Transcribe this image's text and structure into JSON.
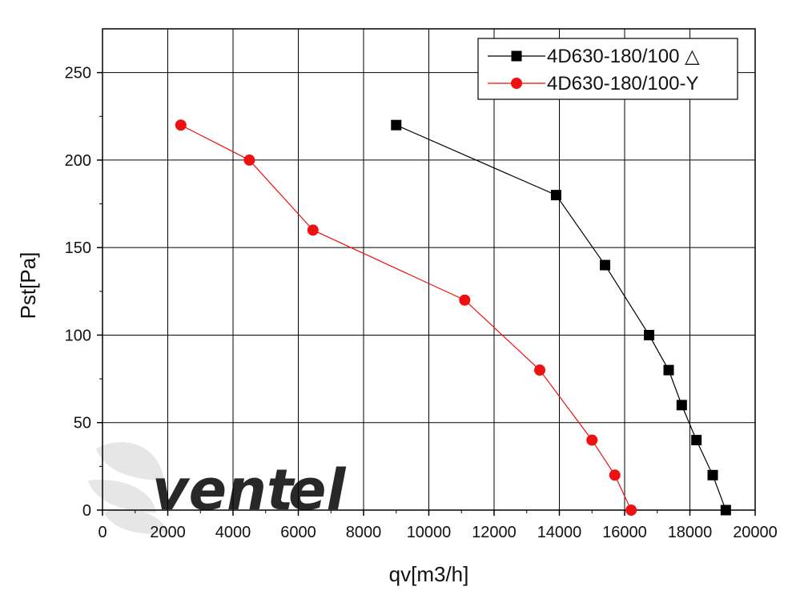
{
  "chart_data": {
    "type": "line",
    "xlabel": "qv[m3/h]",
    "ylabel": "Pst[Pa]",
    "xlim": [
      0,
      20000
    ],
    "ylim": [
      0,
      275
    ],
    "x_ticks": [
      0,
      2000,
      4000,
      6000,
      8000,
      10000,
      12000,
      14000,
      16000,
      18000,
      20000
    ],
    "y_ticks": [
      0,
      50,
      100,
      150,
      200,
      250
    ],
    "grid": true,
    "legend_position": "top-right",
    "series": [
      {
        "name": "4D630-180/100 △",
        "color": "#000000",
        "marker": "square",
        "points": [
          [
            9000,
            220
          ],
          [
            13900,
            180
          ],
          [
            15400,
            140
          ],
          [
            16750,
            100
          ],
          [
            17350,
            80
          ],
          [
            17750,
            60
          ],
          [
            18200,
            40
          ],
          [
            18700,
            20
          ],
          [
            19100,
            0
          ]
        ]
      },
      {
        "name": "4D630-180/100-Y",
        "color": "#ee1111",
        "marker": "circle",
        "points": [
          [
            2400,
            220
          ],
          [
            4500,
            200
          ],
          [
            6450,
            160
          ],
          [
            11100,
            120
          ],
          [
            13400,
            80
          ],
          [
            15000,
            40
          ],
          [
            15700,
            20
          ],
          [
            16200,
            0
          ]
        ]
      }
    ]
  },
  "watermark": {
    "text_dark": "vent",
    "text_light": "el",
    "color_dark": "#cfcfcf",
    "color_light": "#c8e3f6"
  }
}
